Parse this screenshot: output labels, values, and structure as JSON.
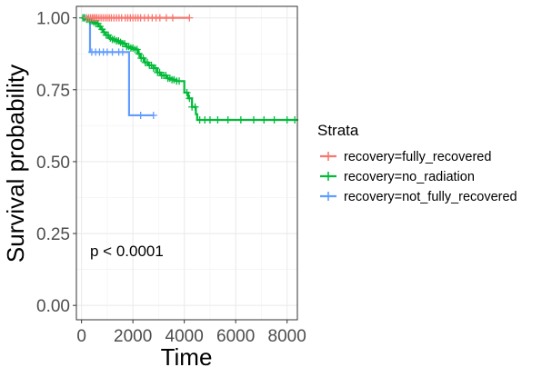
{
  "chart_data": {
    "type": "line",
    "subtype": "kaplan-meier survival curve",
    "xlabel": "Time",
    "ylabel": "Survival probability",
    "xlim": [
      -200,
      8400
    ],
    "ylim": [
      -0.05,
      1.04
    ],
    "x_ticks": [
      0,
      2000,
      4000,
      6000,
      8000
    ],
    "y_ticks": [
      0.0,
      0.25,
      0.5,
      0.75,
      1.0
    ],
    "y_tick_labels": [
      "0.00",
      "0.25",
      "0.50",
      "0.75",
      "1.00"
    ],
    "grid": true,
    "legend": {
      "title": "Strata",
      "placement": "right"
    },
    "annotation": "p < 0.0001",
    "series": [
      {
        "name": "recovery=fully_recovered",
        "color": "#F8766D",
        "steps": [
          [
            0,
            1.0
          ],
          [
            4200,
            1.0
          ]
        ],
        "censor_times": [
          200,
          280,
          350,
          420,
          480,
          540,
          600,
          680,
          760,
          840,
          920,
          1000,
          1080,
          1160,
          1260,
          1360,
          1460,
          1560,
          1700,
          1800,
          1900,
          2000,
          2100,
          2200,
          2300,
          2450,
          2600,
          2750,
          2900,
          3050,
          3300,
          3550,
          4200
        ]
      },
      {
        "name": "recovery=no_radiation",
        "color": "#00BA38",
        "steps": [
          [
            0,
            1.0
          ],
          [
            150,
            0.995
          ],
          [
            300,
            0.99
          ],
          [
            450,
            0.985
          ],
          [
            550,
            0.98
          ],
          [
            650,
            0.97
          ],
          [
            750,
            0.96
          ],
          [
            850,
            0.95
          ],
          [
            950,
            0.94
          ],
          [
            1050,
            0.93
          ],
          [
            1150,
            0.925
          ],
          [
            1300,
            0.92
          ],
          [
            1450,
            0.915
          ],
          [
            1600,
            0.91
          ],
          [
            1750,
            0.9
          ],
          [
            1900,
            0.895
          ],
          [
            2050,
            0.89
          ],
          [
            2200,
            0.875
          ],
          [
            2300,
            0.86
          ],
          [
            2450,
            0.845
          ],
          [
            2600,
            0.835
          ],
          [
            2800,
            0.825
          ],
          [
            2950,
            0.81
          ],
          [
            3100,
            0.8
          ],
          [
            3300,
            0.79
          ],
          [
            3500,
            0.785
          ],
          [
            3700,
            0.78
          ],
          [
            3900,
            0.78
          ],
          [
            4000,
            0.74
          ],
          [
            4150,
            0.72
          ],
          [
            4300,
            0.69
          ],
          [
            4450,
            0.665
          ],
          [
            4500,
            0.645
          ],
          [
            8400,
            0.645
          ]
        ],
        "censor_times": [
          50,
          120,
          200,
          260,
          330,
          400,
          480,
          560,
          640,
          720,
          800,
          880,
          960,
          1040,
          1120,
          1200,
          1280,
          1360,
          1440,
          1520,
          1600,
          1680,
          1760,
          1840,
          1920,
          2000,
          2080,
          2160,
          2240,
          2320,
          2400,
          2480,
          2560,
          2640,
          2720,
          2800,
          2880,
          2960,
          3040,
          3120,
          3200,
          3280,
          3360,
          3440,
          3520,
          3600,
          3700,
          3800,
          4100,
          4200,
          4300,
          4420,
          4600,
          4800,
          5000,
          5300,
          5700,
          6200,
          6700,
          7100,
          7500,
          8000,
          8300
        ]
      },
      {
        "name": "recovery=not_fully_recovered",
        "color": "#619CFF",
        "steps": [
          [
            0,
            1.0
          ],
          [
            330,
            0.881
          ],
          [
            1850,
            0.661
          ],
          [
            2800,
            0.661
          ]
        ],
        "censor_times": [
          100,
          200,
          400,
          550,
          700,
          850,
          1000,
          1200,
          1450,
          1600,
          2300,
          2800
        ]
      }
    ]
  }
}
